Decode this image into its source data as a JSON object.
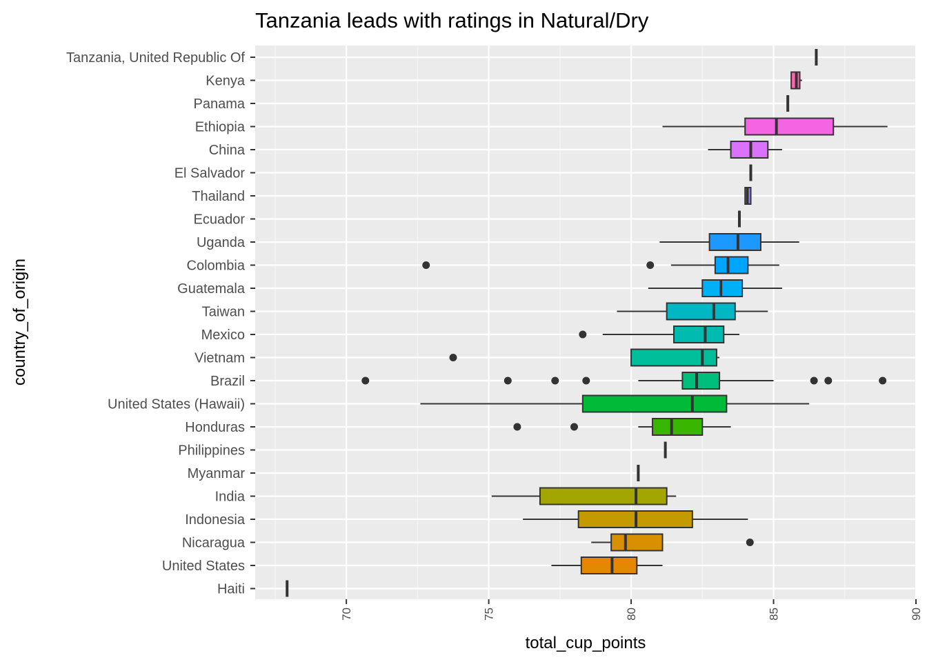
{
  "chart_data": {
    "type": "boxplot",
    "title": "Tanzania leads with ratings in Natural/Dry",
    "xlabel": "total_cup_points",
    "ylabel": "country_of_origin",
    "xlim": [
      66.8,
      90
    ],
    "xticks": [
      70,
      75,
      80,
      85,
      90
    ],
    "grid": true,
    "legend": "none",
    "categories": [
      "Tanzania, United Republic Of",
      "Kenya",
      "Panama",
      "Ethiopia",
      "China",
      "El Salvador",
      "Thailand",
      "Ecuador",
      "Uganda",
      "Colombia",
      "Guatemala",
      "Taiwan",
      "Mexico",
      "Vietnam",
      "Brazil",
      "United States (Hawaii)",
      "Honduras",
      "Philippines",
      "Myanmar",
      "India",
      "Indonesia",
      "Nicaragua",
      "United States",
      "Haiti"
    ],
    "boxes": [
      {
        "country": "Tanzania, United Republic Of",
        "min": 86.5,
        "q1": 86.5,
        "median": 86.5,
        "q3": 86.5,
        "max": 86.5,
        "outliers": [],
        "color": "#FF61C3"
      },
      {
        "country": "Kenya",
        "min": 85.6,
        "q1": 85.62,
        "median": 85.8,
        "q3": 85.92,
        "max": 86.0,
        "outliers": [],
        "color": "#FF64B0"
      },
      {
        "country": "Panama",
        "min": 85.5,
        "q1": 85.5,
        "median": 85.5,
        "q3": 85.5,
        "max": 85.5,
        "outliers": [],
        "color": "#FF67A4"
      },
      {
        "country": "Ethiopia",
        "min": 81.1,
        "q1": 84.0,
        "median": 85.1,
        "q3": 87.1,
        "max": 89.0,
        "outliers": [],
        "color": "#F564E3"
      },
      {
        "country": "China",
        "min": 82.7,
        "q1": 83.5,
        "median": 84.2,
        "q3": 84.8,
        "max": 85.3,
        "outliers": [],
        "color": "#DB72FB"
      },
      {
        "country": "El Salvador",
        "min": 84.2,
        "q1": 84.2,
        "median": 84.2,
        "q3": 84.2,
        "max": 84.2,
        "outliers": [],
        "color": "#C77CFF"
      },
      {
        "country": "Thailand",
        "min": 84.0,
        "q1": 84.0,
        "median": 84.08,
        "q3": 84.2,
        "max": 84.2,
        "outliers": [],
        "color": "#9590FF"
      },
      {
        "country": "Ecuador",
        "min": 83.8,
        "q1": 83.8,
        "median": 83.8,
        "q3": 83.8,
        "max": 83.8,
        "outliers": [],
        "color": "#619CFF"
      },
      {
        "country": "Uganda",
        "min": 81.0,
        "q1": 82.75,
        "median": 83.75,
        "q3": 84.55,
        "max": 85.9,
        "outliers": [],
        "color": "#1D98FF"
      },
      {
        "country": "Colombia",
        "min": 81.4,
        "q1": 82.95,
        "median": 83.4,
        "q3": 84.1,
        "max": 85.2,
        "outliers": [
          72.8,
          80.67
        ],
        "color": "#00A5FF"
      },
      {
        "country": "Guatemala",
        "min": 80.6,
        "q1": 82.5,
        "median": 83.15,
        "q3": 83.9,
        "max": 85.3,
        "outliers": [],
        "color": "#00B0F6"
      },
      {
        "country": "Taiwan",
        "min": 79.5,
        "q1": 81.25,
        "median": 82.9,
        "q3": 83.65,
        "max": 84.8,
        "outliers": [],
        "color": "#00B7C3"
      },
      {
        "country": "Mexico",
        "min": 79.0,
        "q1": 81.5,
        "median": 82.6,
        "q3": 83.25,
        "max": 83.8,
        "outliers": [
          78.3
        ],
        "color": "#00BBB0"
      },
      {
        "country": "Vietnam",
        "min": 80.0,
        "q1": 80.0,
        "median": 82.5,
        "q3": 83.0,
        "max": 83.1,
        "outliers": [
          73.75
        ],
        "color": "#00BE9A"
      },
      {
        "country": "Brazil",
        "min": 80.25,
        "q1": 81.8,
        "median": 82.3,
        "q3": 83.1,
        "max": 85.0,
        "outliers": [
          70.67,
          75.67,
          77.33,
          78.42,
          86.42,
          86.92,
          88.83
        ],
        "color": "#00BF7D"
      },
      {
        "country": "United States (Hawaii)",
        "min": 72.6,
        "q1": 78.3,
        "median": 82.15,
        "q3": 83.35,
        "max": 86.25,
        "outliers": [],
        "color": "#00BA38"
      },
      {
        "country": "Honduras",
        "min": 80.25,
        "q1": 80.75,
        "median": 81.42,
        "q3": 82.5,
        "max": 83.5,
        "outliers": [
          76.0,
          78.0
        ],
        "color": "#39B600"
      },
      {
        "country": "Philippines",
        "min": 81.2,
        "q1": 81.2,
        "median": 81.2,
        "q3": 81.2,
        "max": 81.2,
        "outliers": [],
        "color": "#5BB300"
      },
      {
        "country": "Myanmar",
        "min": 80.25,
        "q1": 80.25,
        "median": 80.25,
        "q3": 80.25,
        "max": 80.25,
        "outliers": [],
        "color": "#7CAE00"
      },
      {
        "country": "India",
        "min": 75.1,
        "q1": 76.8,
        "median": 80.17,
        "q3": 81.25,
        "max": 81.58,
        "outliers": [],
        "color": "#A3A500"
      },
      {
        "country": "Indonesia",
        "min": 76.2,
        "q1": 78.15,
        "median": 80.17,
        "q3": 82.15,
        "max": 84.1,
        "outliers": [],
        "color": "#C49A00"
      },
      {
        "country": "Nicaragua",
        "min": 78.6,
        "q1": 79.3,
        "median": 79.8,
        "q3": 81.1,
        "max": 81.1,
        "outliers": [
          84.17
        ],
        "color": "#D89000"
      },
      {
        "country": "United States",
        "min": 77.2,
        "q1": 78.25,
        "median": 79.33,
        "q3": 80.2,
        "max": 81.1,
        "outliers": [],
        "color": "#E58700"
      },
      {
        "country": "Haiti",
        "min": 67.92,
        "q1": 67.92,
        "median": 67.92,
        "q3": 67.92,
        "max": 67.92,
        "outliers": [],
        "color": "#F8766D"
      }
    ]
  }
}
